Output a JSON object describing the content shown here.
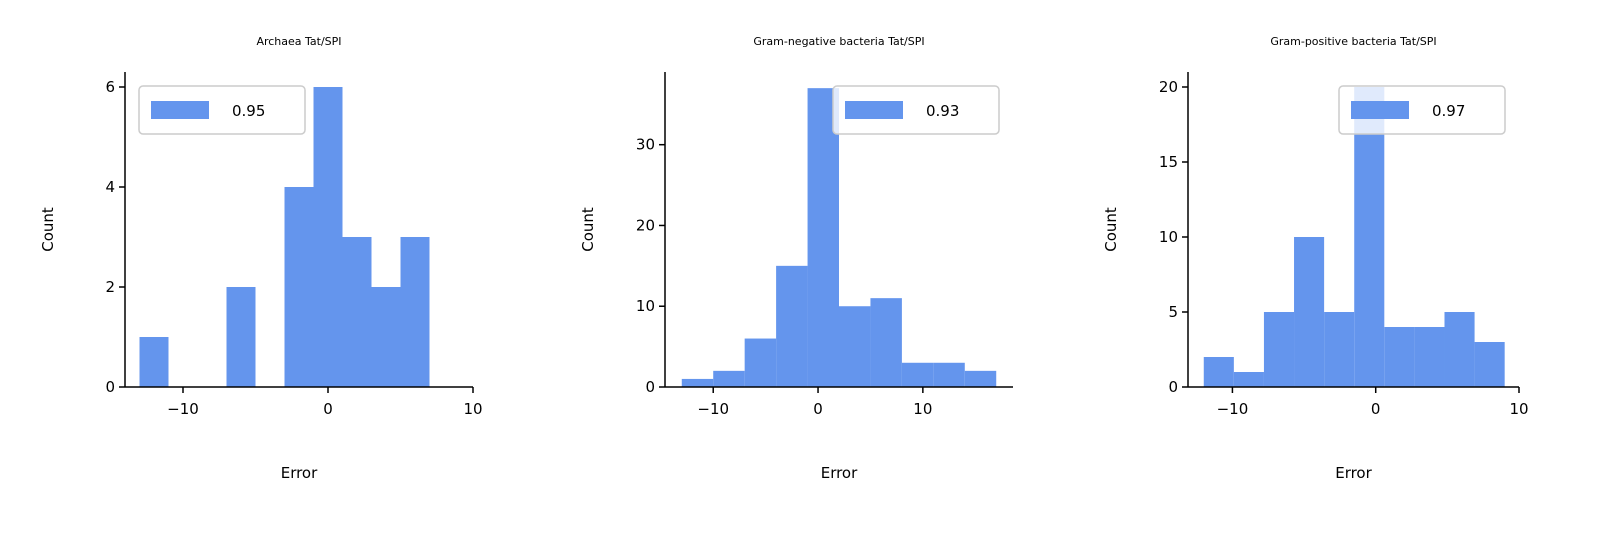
{
  "chart_data": [
    {
      "type": "histogram",
      "title": "Archaea Tat/SPI",
      "x_label": "Error",
      "y_label": "Count",
      "bins": [
        -13,
        -11,
        -9,
        -7,
        -5,
        -3,
        -1,
        1,
        3,
        5,
        7
      ],
      "series": [
        {
          "name": "0.95",
          "color": "#6495ed",
          "values": [
            1,
            0,
            0,
            2,
            0,
            4,
            6,
            3,
            2,
            3
          ]
        }
      ],
      "xlim": [
        -14,
        10
      ],
      "xticks": [
        {
          "value": -10,
          "label": "−10"
        },
        0,
        10
      ],
      "ylim": [
        0,
        6.3
      ],
      "yticks": [
        0,
        2,
        4,
        6
      ],
      "legend": "upper left"
    },
    {
      "type": "histogram",
      "title": "Gram-negative bacteria Tat/SPI",
      "x_label": "Error",
      "y_label": "Count",
      "bins": [
        -13,
        -10,
        -7,
        -4,
        -1,
        2,
        5,
        8,
        11,
        14,
        17
      ],
      "series": [
        {
          "name": "0.93",
          "color": "#6495ed",
          "values": [
            1,
            2,
            6,
            15,
            37,
            10,
            11,
            3,
            3,
            2
          ]
        }
      ],
      "xlim": [
        -14.6,
        18.6
      ],
      "xticks": [
        {
          "value": -10,
          "label": "−10"
        },
        0,
        10
      ],
      "ylim": [
        0,
        39
      ],
      "yticks": [
        0,
        10,
        20,
        30
      ],
      "legend": "upper right"
    },
    {
      "type": "histogram",
      "title": "Gram-positive bacteria Tat/SPI",
      "x_label": "Error",
      "y_label": "Count",
      "bins": [
        -12,
        -9.9,
        -7.8,
        -5.7,
        -3.6,
        -1.5,
        0.6,
        2.7,
        4.8,
        6.9,
        9
      ],
      "series": [
        {
          "name": "0.97",
          "color": "#6495ed",
          "values": [
            2,
            1,
            5,
            10,
            5,
            20,
            4,
            4,
            5,
            3
          ]
        }
      ],
      "xlim": [
        -13.1,
        10
      ],
      "xticks": [
        {
          "value": -10,
          "label": "−10"
        },
        0,
        10
      ],
      "ylim": [
        0,
        21
      ],
      "yticks": [
        0,
        5,
        10,
        15,
        20
      ],
      "legend": "upper right"
    }
  ]
}
